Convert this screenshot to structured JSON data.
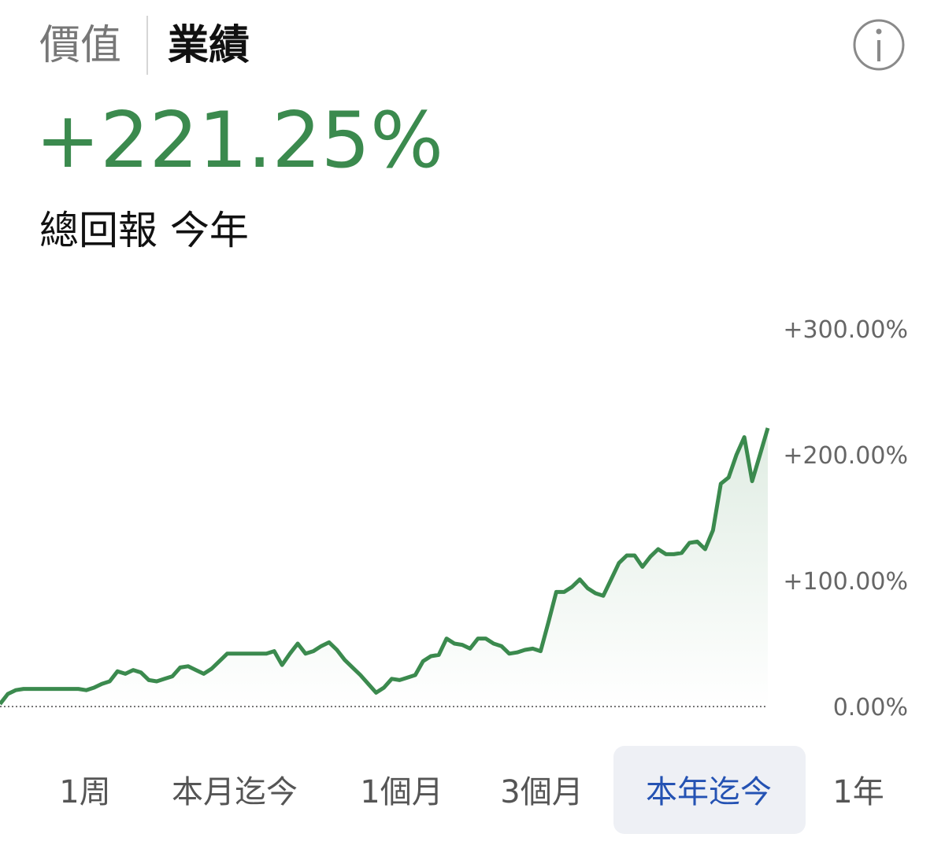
{
  "header": {
    "tabs": [
      "價值",
      "業績"
    ],
    "selected": 1
  },
  "headline": {
    "value": "+221.25%",
    "label": "總回報 今年"
  },
  "chart_data": {
    "type": "line",
    "color": "#3b8a4e",
    "area": true,
    "values": [
      2,
      10,
      13,
      14,
      14,
      14,
      14,
      14,
      14,
      14,
      14,
      13,
      15,
      18,
      20,
      28,
      26,
      29,
      27,
      21,
      20,
      22,
      24,
      31,
      32,
      29,
      26,
      30,
      36,
      42,
      42,
      42,
      42,
      42,
      42,
      44,
      33,
      42,
      50,
      42,
      44,
      48,
      51,
      45,
      37,
      31,
      25,
      18,
      11,
      15,
      22,
      21,
      23,
      25,
      36,
      40,
      41,
      54,
      50,
      49,
      46,
      54,
      54,
      50,
      48,
      42,
      43,
      45,
      46,
      44,
      67,
      91,
      91,
      95,
      101,
      94,
      90,
      88,
      101,
      114,
      120,
      120,
      111,
      119,
      125,
      121,
      121,
      122,
      130,
      131,
      125,
      140,
      177,
      182,
      200,
      214,
      179,
      200,
      221.25
    ],
    "ylim": [
      0,
      300
    ],
    "yticks": [
      {
        "value": 0,
        "label": "0.00%"
      },
      {
        "value": 100,
        "label": "+100.00%"
      },
      {
        "value": 200,
        "label": "+200.00%"
      },
      {
        "value": 300,
        "label": "+300.00%"
      }
    ]
  },
  "range_tabs": {
    "items": [
      "1周",
      "本月迄今",
      "1個月",
      "3個月",
      "本年迄今",
      "1年"
    ],
    "selected": 4
  }
}
